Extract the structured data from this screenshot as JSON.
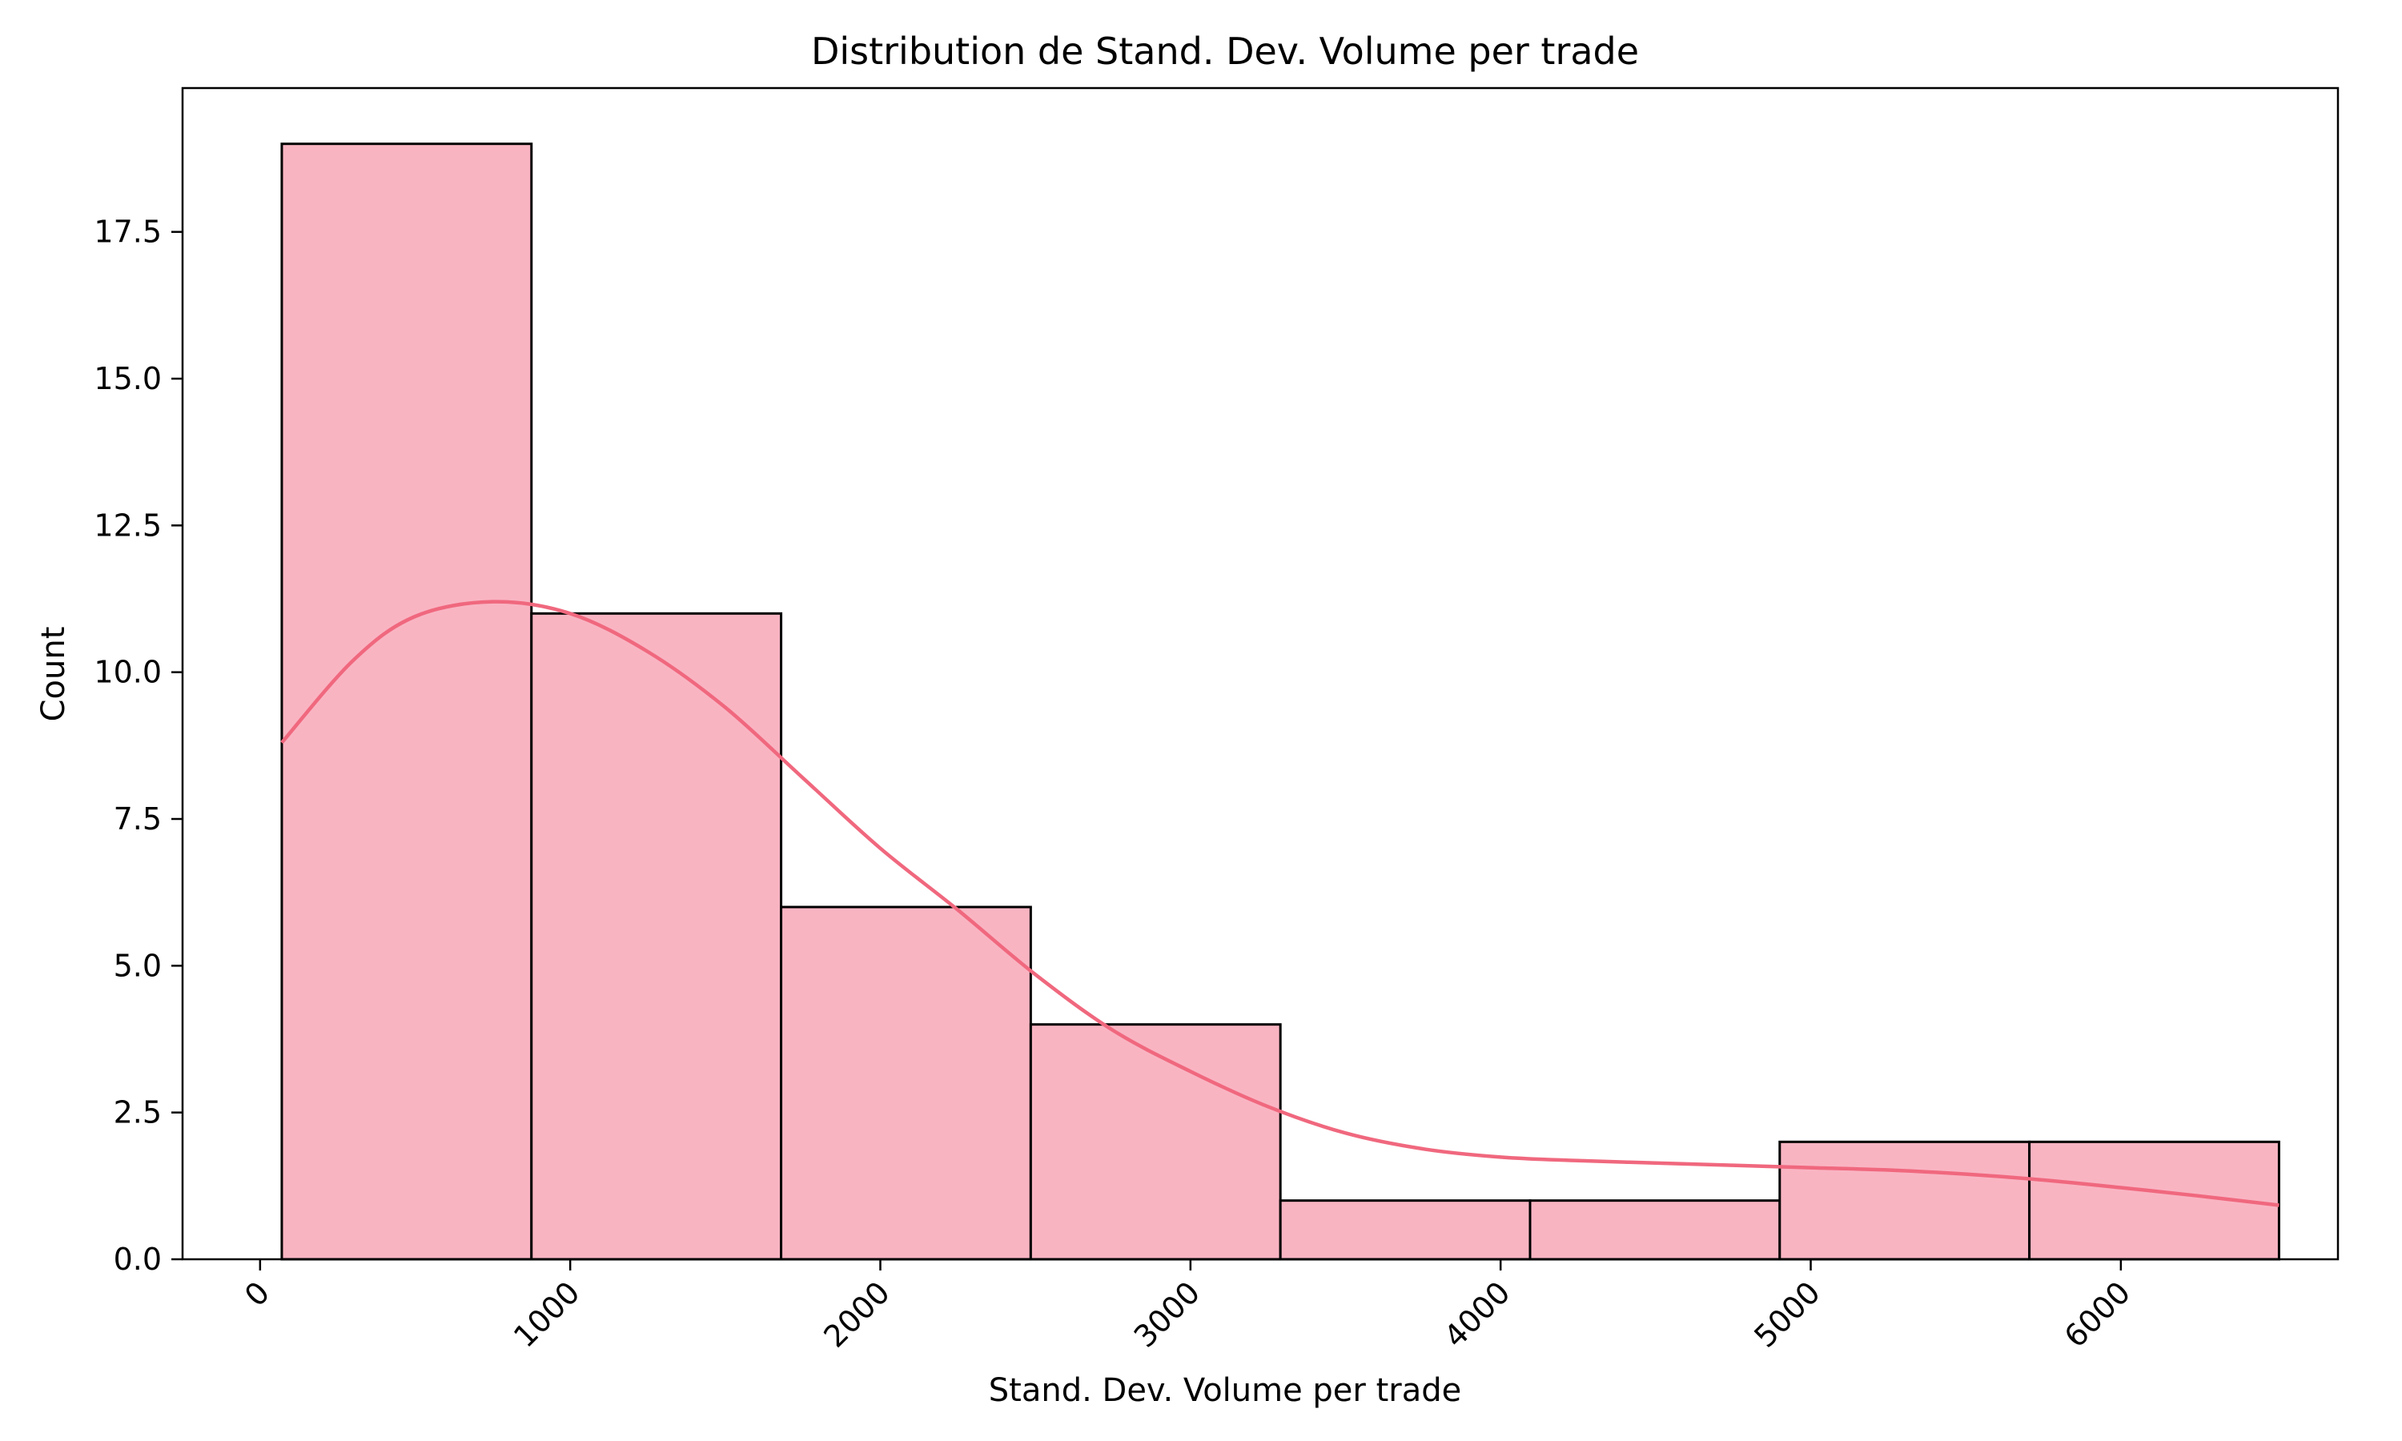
{
  "chart_data": {
    "type": "bar",
    "title": "Distribution de Stand. Dev. Volume per trade",
    "xlabel": "Stand. Dev. Volume per trade",
    "ylabel": "Count",
    "bins": [
      {
        "x0": 70,
        "x1": 875,
        "count": 19
      },
      {
        "x0": 875,
        "x1": 1680,
        "count": 11
      },
      {
        "x0": 1680,
        "x1": 2485,
        "count": 6
      },
      {
        "x0": 2485,
        "x1": 3290,
        "count": 4
      },
      {
        "x0": 3290,
        "x1": 4095,
        "count": 1
      },
      {
        "x0": 4095,
        "x1": 4900,
        "count": 1
      },
      {
        "x0": 4900,
        "x1": 5705,
        "count": 2
      },
      {
        "x0": 5705,
        "x1": 6510,
        "count": 2
      }
    ],
    "kde": {
      "x": [
        70,
        300,
        500,
        750,
        1000,
        1250,
        1500,
        1750,
        2000,
        2250,
        2500,
        2750,
        3000,
        3250,
        3500,
        3750,
        4000,
        4250,
        4500,
        4750,
        5000,
        5250,
        5500,
        5750,
        6000,
        6250,
        6510
      ],
      "y": [
        8.8,
        10.2,
        10.95,
        11.2,
        11.0,
        10.35,
        9.4,
        8.2,
        7.0,
        5.95,
        4.85,
        3.9,
        3.2,
        2.6,
        2.15,
        1.88,
        1.74,
        1.68,
        1.64,
        1.6,
        1.56,
        1.52,
        1.45,
        1.35,
        1.22,
        1.08,
        0.92
      ]
    },
    "xlim": [
      -250,
      6700
    ],
    "ylim": [
      0,
      19.95
    ],
    "xticks": [
      0,
      1000,
      2000,
      3000,
      4000,
      5000,
      6000
    ],
    "xtick_labels": [
      "0",
      "1000",
      "2000",
      "3000",
      "4000",
      "5000",
      "6000"
    ],
    "yticks": [
      0,
      2.5,
      5,
      7.5,
      10,
      12.5,
      15,
      17.5
    ],
    "ytick_labels": [
      "0.0",
      "2.5",
      "5.0",
      "7.5",
      "10.0",
      "12.5",
      "15.0",
      "17.5"
    ],
    "grid": false,
    "colors": {
      "bar_fill": "#f9b4c2",
      "bar_edge": "#000000",
      "kde_line": "#f0687e"
    }
  }
}
